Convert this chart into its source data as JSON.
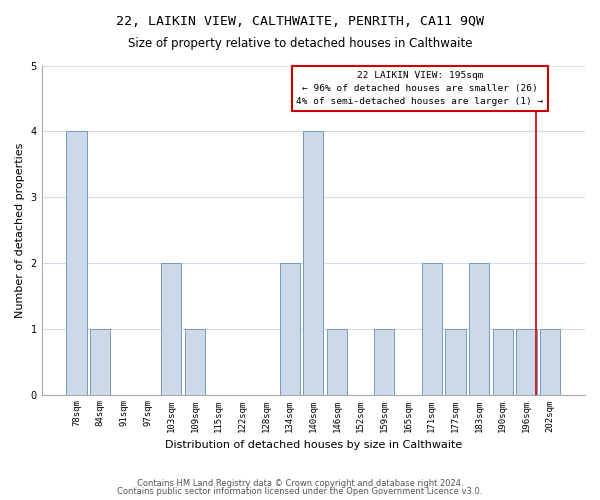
{
  "title": "22, LAIKIN VIEW, CALTHWAITE, PENRITH, CA11 9QW",
  "subtitle": "Size of property relative to detached houses in Calthwaite",
  "xlabel": "Distribution of detached houses by size in Calthwaite",
  "ylabel": "Number of detached properties",
  "footer1": "Contains HM Land Registry data © Crown copyright and database right 2024.",
  "footer2": "Contains public sector information licensed under the Open Government Licence v3.0.",
  "categories": [
    "78sqm",
    "84sqm",
    "91sqm",
    "97sqm",
    "103sqm",
    "109sqm",
    "115sqm",
    "122sqm",
    "128sqm",
    "134sqm",
    "140sqm",
    "146sqm",
    "152sqm",
    "159sqm",
    "165sqm",
    "171sqm",
    "177sqm",
    "183sqm",
    "190sqm",
    "196sqm",
    "202sqm"
  ],
  "values": [
    4,
    1,
    0,
    0,
    2,
    1,
    0,
    0,
    0,
    2,
    4,
    1,
    0,
    1,
    0,
    2,
    1,
    2,
    1,
    1,
    1
  ],
  "bar_color": "#ccd9ea",
  "bar_edge_color": "#7799bb",
  "property_line_x": 19.42,
  "annotation_text": "22 LAIKIN VIEW: 195sqm\n← 96% of detached houses are smaller (26)\n4% of semi-detached houses are larger (1) →",
  "annotation_box_color": "#cc0000",
  "ylim": [
    0,
    5
  ],
  "yticks": [
    0,
    1,
    2,
    3,
    4,
    5
  ],
  "grid_color": "#d0dde8",
  "background_color": "#ffffff",
  "title_fontsize": 9.5,
  "subtitle_fontsize": 8.5,
  "tick_fontsize": 6.5,
  "ylabel_fontsize": 8,
  "xlabel_fontsize": 8,
  "annotation_fontsize": 6.8,
  "footer_fontsize": 6
}
